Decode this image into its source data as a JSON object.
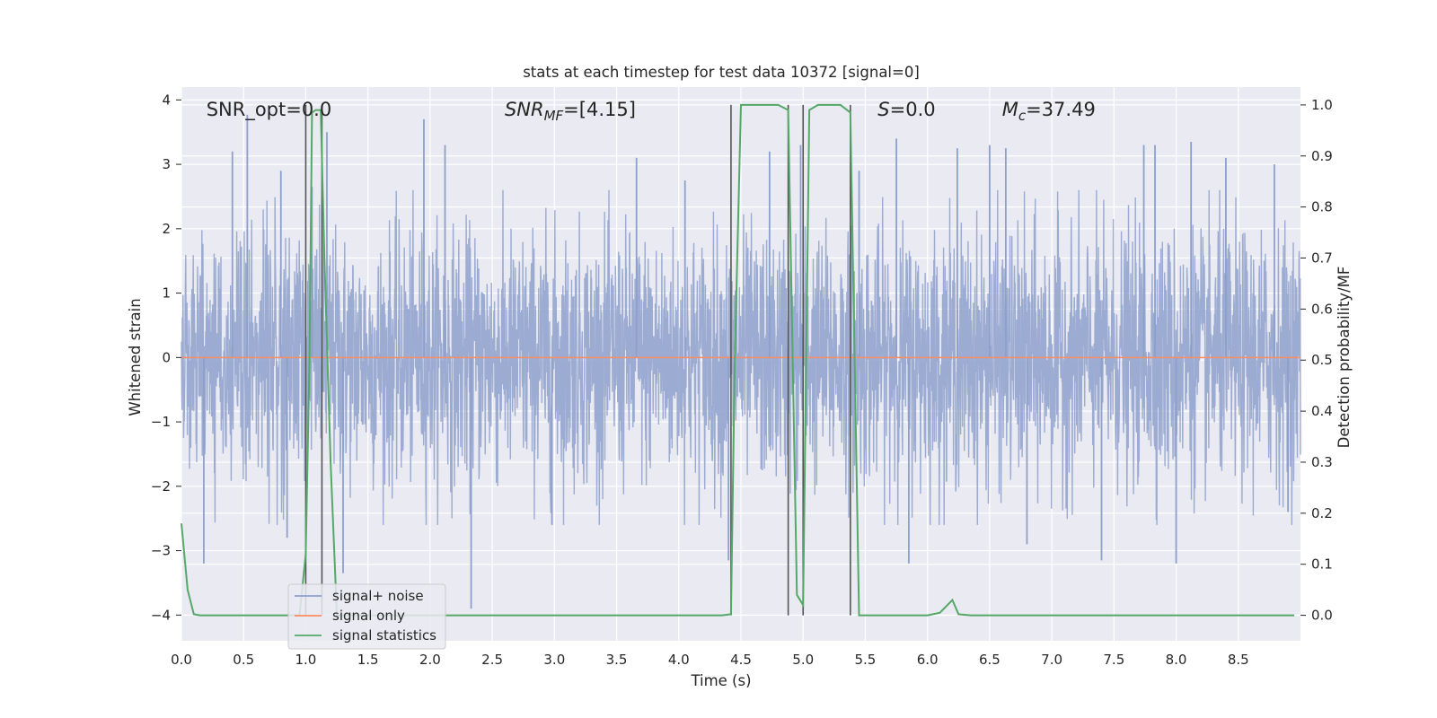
{
  "chart_data": {
    "type": "line",
    "title": "stats at each timestep for test data 10372 [signal=0]",
    "xlabel": "Time (s)",
    "ylabel": "Whitened strain",
    "y2label": "Detection probability/MF",
    "xlim": [
      0,
      9
    ],
    "ylim": [
      -4.4,
      4.2
    ],
    "y2lim": [
      -0.05,
      1.035
    ],
    "xticks": [
      "0.0",
      "0.5",
      "1.0",
      "1.5",
      "2.0",
      "2.5",
      "3.0",
      "3.5",
      "4.0",
      "4.5",
      "5.0",
      "5.5",
      "6.0",
      "6.5",
      "7.0",
      "7.5",
      "8.0",
      "8.5"
    ],
    "xtick_values": [
      0,
      0.5,
      1,
      1.5,
      2,
      2.5,
      3,
      3.5,
      4,
      4.5,
      5,
      5.5,
      6,
      6.5,
      7,
      7.5,
      8,
      8.5
    ],
    "yticks": [
      "−4",
      "−3",
      "−2",
      "−1",
      "0",
      "1",
      "2",
      "3",
      "4"
    ],
    "ytick_values": [
      -4,
      -3,
      -2,
      -1,
      0,
      1,
      2,
      3,
      4
    ],
    "y2ticks": [
      "0.0",
      "0.1",
      "0.2",
      "0.3",
      "0.4",
      "0.5",
      "0.6",
      "0.7",
      "0.8",
      "0.9",
      "1.0"
    ],
    "y2tick_values": [
      0,
      0.1,
      0.2,
      0.3,
      0.4,
      0.5,
      0.6,
      0.7,
      0.8,
      0.9,
      1.0
    ],
    "grid": true,
    "legend_position": "bottom-left",
    "annotations": [
      {
        "text": "SNR_opt=0.0",
        "x": 0.2,
        "y": 3.85
      },
      {
        "text": "SNR",
        "sub": "MF",
        "rest": "=[4.15]",
        "italic": true,
        "x": 2.6,
        "y": 3.85
      },
      {
        "text": "S",
        "sub": "",
        "rest": "=0.0",
        "italic": true,
        "x": 5.6,
        "y": 3.85
      },
      {
        "text": "M",
        "sub": "c",
        "rest": "=37.49",
        "italic": true,
        "x": 6.6,
        "y": 3.85
      }
    ],
    "series": [
      {
        "name": "signal+ noise",
        "color": "#8da0cb",
        "axis": "left",
        "description": "dense whitened noise, roughly within ±2.5 with spikes to about ±3.8",
        "spikes": [
          [
            0.53,
            3.77
          ],
          [
            0.41,
            3.2
          ],
          [
            0.8,
            2.9
          ],
          [
            1.05,
            2.65
          ],
          [
            1.17,
            3.5
          ],
          [
            1.95,
            3.7
          ],
          [
            2.33,
            -3.9
          ],
          [
            2.12,
            3.3
          ],
          [
            2.98,
            -2.6
          ],
          [
            3.66,
            3.1
          ],
          [
            4.05,
            2.75
          ],
          [
            4.4,
            -3.15
          ],
          [
            4.73,
            3.2
          ],
          [
            4.98,
            3.3
          ],
          [
            5.45,
            2.9
          ],
          [
            5.75,
            3.4
          ],
          [
            5.85,
            -3.2
          ],
          [
            6.24,
            3.25
          ],
          [
            6.5,
            3.3
          ],
          [
            6.63,
            3.25
          ],
          [
            6.8,
            -2.9
          ],
          [
            7.74,
            3.3
          ],
          [
            7.83,
            3.3
          ],
          [
            8.12,
            3.35
          ],
          [
            8.4,
            3.1
          ],
          [
            8.79,
            3.0
          ],
          [
            8.9,
            -2.4
          ],
          [
            0.18,
            -3.2
          ],
          [
            0.85,
            -2.8
          ],
          [
            1.3,
            -3.35
          ],
          [
            7.4,
            -3.15
          ],
          [
            8.0,
            -3.2
          ]
        ]
      },
      {
        "name": "signal only",
        "color": "#fc8d62",
        "axis": "left",
        "x": [
          0,
          9
        ],
        "y": [
          0,
          0
        ]
      },
      {
        "name": "signal statistics",
        "color": "#55a868",
        "axis": "right",
        "x": [
          0.0,
          0.05,
          0.1,
          0.15,
          0.2,
          0.4,
          0.6,
          0.8,
          0.95,
          1.0,
          1.03,
          1.05,
          1.08,
          1.12,
          1.15,
          1.2,
          1.25,
          2.0,
          3.0,
          4.0,
          4.35,
          4.42,
          4.45,
          4.5,
          4.8,
          4.88,
          4.95,
          5.0,
          5.05,
          5.12,
          5.3,
          5.38,
          5.45,
          5.5,
          5.6,
          6.0,
          6.1,
          6.2,
          6.25,
          6.35,
          7.0,
          8.0,
          8.95
        ],
        "y": [
          0.18,
          0.05,
          0.002,
          0.0,
          0.0,
          0.0,
          0.0,
          0.0,
          0.0,
          0.12,
          0.5,
          0.985,
          0.99,
          0.99,
          0.7,
          0.3,
          0.0,
          0.0,
          0.0,
          0.0,
          0.0,
          0.002,
          0.5,
          1.0,
          1.0,
          0.99,
          0.04,
          0.02,
          0.99,
          1.0,
          1.0,
          0.985,
          0.0,
          0.0,
          0.0,
          0.0,
          0.005,
          0.03,
          0.002,
          0.0,
          0.0,
          0.0,
          0.0
        ]
      }
    ],
    "vlines": [
      {
        "x": 1.0,
        "color": "#555555"
      },
      {
        "x": 1.13,
        "color": "#555555"
      },
      {
        "x": 4.42,
        "color": "#555555"
      },
      {
        "x": 4.88,
        "color": "#555555"
      },
      {
        "x": 5.0,
        "color": "#555555"
      },
      {
        "x": 5.38,
        "color": "#555555"
      }
    ]
  }
}
